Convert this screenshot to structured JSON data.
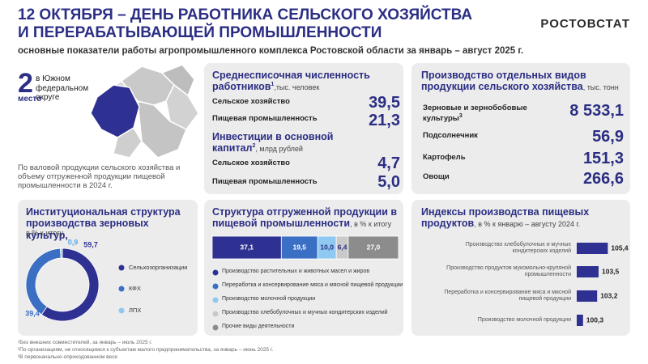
{
  "header": {
    "title_lines": [
      "12 ОКТЯБРЯ – ДЕНЬ РАБОТНИКА СЕЛЬСКОГО ХОЗЯЙСТВА",
      "И ПЕРЕРАБАТЫВАЮЩЕЙ ПРОМЫШЛЕННОСТИ"
    ],
    "subtitle": "основные показатели работы агропромышленного комплекса Ростовской области за январь – август 2025 г.",
    "logo": "РОСТОВСТАТ"
  },
  "rank": {
    "place": "2",
    "district": "в Южном федеральном округе",
    "place_label": "место",
    "note": "По валовой продукции сельского хозяйства и объему отгруженной продукции пищевой промышленности в 2024 г."
  },
  "workforce": {
    "title": "Среднесписочная численность работников",
    "mark": "1",
    "unit": ",тыс. человек",
    "rows": [
      {
        "label": "Сельское хозяйство",
        "value": "39,5"
      },
      {
        "label": "Пищевая промышленность",
        "value": "21,3"
      }
    ]
  },
  "investment": {
    "title": "Инвестиции в основной капитал",
    "mark": "2",
    "unit": ", млрд рублей",
    "rows": [
      {
        "label": "Сельское хозяйство",
        "value": "4,7"
      },
      {
        "label": "Пищевая промышленность",
        "value": "5,0"
      }
    ]
  },
  "production": {
    "title": "Производство отдельных видов продукции сельского хозяйства",
    "unit": ", тыс. тонн",
    "rows": [
      {
        "label": "Зерновые и зернобобовые культуры",
        "mark": "3",
        "value": "8 533,1"
      },
      {
        "label": "Подсолнечник",
        "value": "56,9"
      },
      {
        "label": "Картофель",
        "value": "151,3"
      },
      {
        "label": "Овощи",
        "value": "266,6"
      }
    ]
  },
  "chart_data": [
    {
      "type": "pie",
      "title": "Институциональная структура производства зерновых культур,",
      "subtitle": "в % к итогу",
      "categories": [
        "Сельхозорганизации",
        "КФХ",
        "ЛПХ"
      ],
      "values": [
        59.7,
        39.4,
        0.9
      ],
      "value_labels": [
        "59,7",
        "39,4",
        "0,9"
      ],
      "colors": [
        "#2e3192",
        "#3a6fc4",
        "#8fc8f0"
      ]
    },
    {
      "type": "bar",
      "stacked": true,
      "orientation": "horizontal",
      "title": "Структура отгруженной продукции в пищевой промышленности",
      "unit": ", в % к итогу",
      "xlim": [
        0,
        100
      ],
      "series": [
        {
          "name": "Производство растительных и животных масел и жиров",
          "color": "#2e3192",
          "values": [
            37.1
          ],
          "value_labels": [
            "37,1"
          ]
        },
        {
          "name": "Переработка и консервирование мяса и мясной пищевой продукции",
          "color": "#3a6fc4",
          "values": [
            19.5
          ],
          "value_labels": [
            "19,5"
          ]
        },
        {
          "name": "Производство молочной продукции",
          "color": "#8fc8f0",
          "values": [
            10
          ],
          "value_labels": [
            "10,0"
          ]
        },
        {
          "name": "Производство хлебобулочных и мучных кондитерских изделий",
          "color": "#c9c9c9",
          "values": [
            6.4
          ],
          "value_labels": [
            "6,4"
          ]
        },
        {
          "name": "Прочие виды деятельности",
          "color": "#8c8c8c",
          "values": [
            27
          ],
          "value_labels": [
            "27,0"
          ]
        }
      ]
    },
    {
      "type": "bar",
      "orientation": "horizontal",
      "title": "Индексы производства пищевых продуктов",
      "unit": ", в % к январю – августу 2024 г.",
      "categories": [
        "Производство хлебобулочных и мучных кондитерских изделий",
        "Производство продуктов мукомольно-крупяной промышленности",
        "Переработка и консервирование мяса и мясной пищевой продукции",
        "Производство молочной продукции"
      ],
      "values": [
        105.4,
        103.5,
        103.2,
        100.3
      ],
      "value_labels": [
        "105,4",
        "103,5",
        "103,2",
        "100,3"
      ],
      "color": "#2e3192",
      "xlim": [
        99,
        106
      ]
    }
  ],
  "footnotes": [
    "¹Без внешних совместителей, за январь – июль 2025 г.",
    "²По организациям, не относящимся к субъектам малого предпринимательства, за январь – июнь 2025 г.",
    "³В первоначально-оприходованном весе"
  ]
}
